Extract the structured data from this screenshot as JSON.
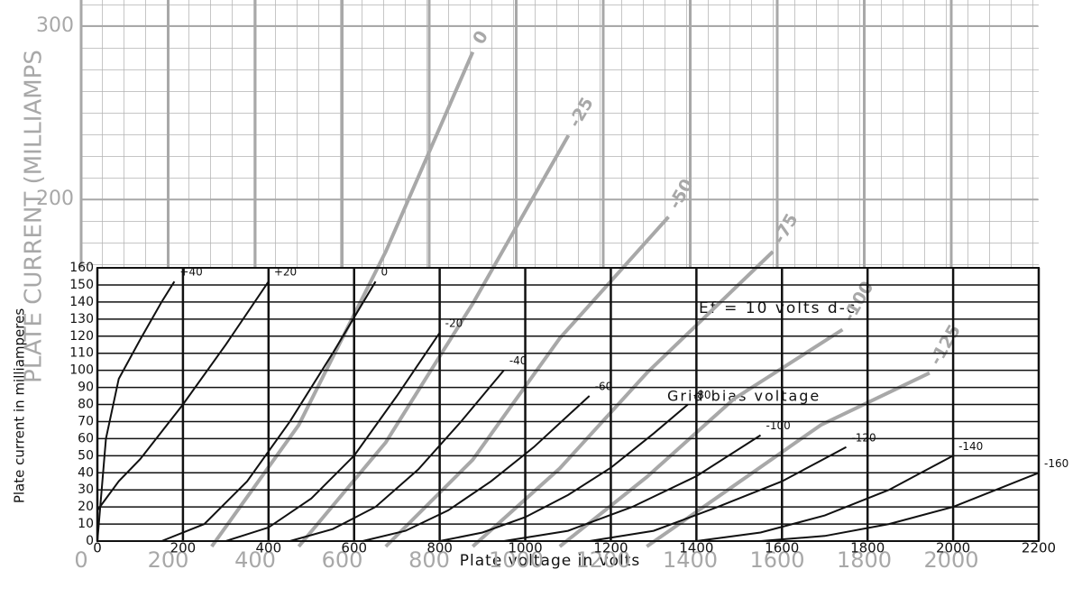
{
  "chart_data": [
    {
      "type": "line",
      "ylabel": "PLATE CURRENT (MILLIAMPS",
      "xlim": [
        0,
        2200
      ],
      "ylim": [
        0,
        315
      ],
      "xticks": [
        0,
        200,
        400,
        600,
        800,
        1000,
        1200,
        1400,
        1600,
        1800,
        2000
      ],
      "yticks": [
        200,
        300
      ],
      "grid": true,
      "color": "#a8a8a8",
      "series": [
        {
          "name": "0",
          "x": [
            300,
            500,
            700,
            900
          ],
          "values": [
            0,
            70,
            170,
            285
          ]
        },
        {
          "name": "-25",
          "x": [
            500,
            700,
            900,
            1120
          ],
          "values": [
            0,
            60,
            140,
            237
          ]
        },
        {
          "name": "-50",
          "x": [
            700,
            900,
            1100,
            1350
          ],
          "values": [
            0,
            50,
            120,
            190
          ]
        },
        {
          "name": "-75",
          "x": [
            900,
            1100,
            1300,
            1590
          ],
          "values": [
            0,
            45,
            100,
            170
          ]
        },
        {
          "name": "-100",
          "x": [
            1100,
            1300,
            1500,
            1750
          ],
          "values": [
            0,
            40,
            85,
            125
          ]
        },
        {
          "name": "-125",
          "x": [
            1300,
            1500,
            1700,
            1950
          ],
          "values": [
            0,
            35,
            70,
            100
          ]
        }
      ]
    },
    {
      "type": "line",
      "xlabel": "Plate voltage in volts",
      "ylabel": "Plate current in milliamperes",
      "annotations": [
        "Ef = 10 volts d-c",
        "Grid bias voltage"
      ],
      "xlim": [
        0,
        2200
      ],
      "ylim": [
        0,
        160
      ],
      "xticks": [
        0,
        200,
        400,
        600,
        800,
        1000,
        1200,
        1400,
        1600,
        1800,
        2000,
        2200
      ],
      "yticks": [
        0,
        10,
        20,
        30,
        40,
        50,
        60,
        70,
        80,
        90,
        100,
        110,
        120,
        130,
        140,
        150,
        160
      ],
      "grid": true,
      "color": "#111111",
      "series": [
        {
          "name": "+40",
          "x": [
            0,
            20,
            50,
            100,
            150,
            180
          ],
          "values": [
            0,
            60,
            95,
            118,
            140,
            152
          ]
        },
        {
          "name": "+20",
          "x": [
            0,
            50,
            100,
            200,
            300,
            400
          ],
          "values": [
            18,
            35,
            48,
            80,
            115,
            152
          ]
        },
        {
          "name": "0",
          "x": [
            150,
            250,
            350,
            450,
            550,
            650
          ],
          "values": [
            0,
            10,
            35,
            70,
            110,
            152
          ]
        },
        {
          "name": "-20",
          "x": [
            300,
            400,
            500,
            600,
            700,
            800
          ],
          "values": [
            0,
            8,
            25,
            50,
            85,
            122
          ]
        },
        {
          "name": "-40",
          "x": [
            450,
            550,
            650,
            750,
            850,
            950
          ],
          "values": [
            0,
            7,
            20,
            42,
            70,
            100
          ]
        },
        {
          "name": "-60",
          "x": [
            620,
            720,
            820,
            920,
            1020,
            1150
          ],
          "values": [
            0,
            6,
            18,
            35,
            55,
            85
          ]
        },
        {
          "name": "-80",
          "x": [
            800,
            900,
            1000,
            1100,
            1200,
            1300,
            1380
          ],
          "values": [
            0,
            5,
            14,
            27,
            43,
            63,
            80
          ]
        },
        {
          "name": "-100",
          "x": [
            950,
            1100,
            1250,
            1400,
            1550
          ],
          "values": [
            0,
            6,
            20,
            38,
            62
          ]
        },
        {
          "name": "-120",
          "x": [
            1150,
            1300,
            1450,
            1600,
            1750
          ],
          "values": [
            0,
            6,
            20,
            35,
            55
          ]
        },
        {
          "name": "-140",
          "x": [
            1400,
            1550,
            1700,
            1850,
            2000
          ],
          "values": [
            0,
            5,
            15,
            30,
            50
          ]
        },
        {
          "name": "-160",
          "x": [
            1550,
            1700,
            1850,
            2000,
            2100,
            2200
          ],
          "values": [
            0,
            3,
            10,
            20,
            30,
            40
          ]
        }
      ]
    }
  ]
}
